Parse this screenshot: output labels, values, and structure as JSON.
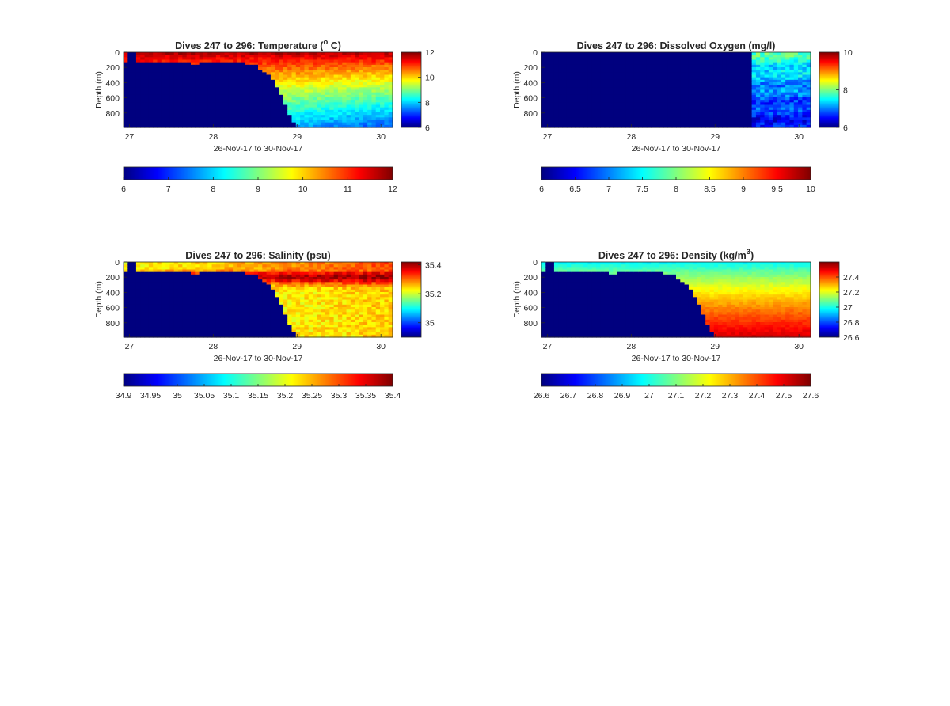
{
  "figure": {
    "background": "#ffffff"
  },
  "colormap": {
    "name": "jet",
    "stops": [
      "#00007f",
      "#0000ff",
      "#007fff",
      "#00ffff",
      "#7fff7f",
      "#ffff00",
      "#ff7f00",
      "#ff0000",
      "#7f0000"
    ]
  },
  "chart_data": [
    {
      "type": "heatmap",
      "title_main": "Dives 247 to 296: Temperature (",
      "title_sup": "o",
      "title_tail": " C)",
      "xlabel": "26-Nov-17 to 30-Nov-17",
      "ylabel": "Depth (m)",
      "x_ticks": [
        "27",
        "28",
        "29",
        "30"
      ],
      "x_tick_values": [
        27,
        28,
        29,
        30
      ],
      "xlim": [
        26.93,
        30.14
      ],
      "y_ticks": [
        "0",
        "200",
        "400",
        "600",
        "800"
      ],
      "y_tick_values": [
        0,
        200,
        400,
        600,
        800
      ],
      "ylim": [
        0,
        990
      ],
      "colorbar": {
        "ticks": [
          "6",
          "8",
          "10",
          "12"
        ],
        "tick_values": [
          6,
          8,
          10,
          12
        ],
        "range": [
          6,
          12
        ]
      },
      "hcolorbar": {
        "ticks": [
          "6",
          "7",
          "8",
          "9",
          "10",
          "11",
          "12"
        ],
        "tick_values": [
          6,
          7,
          8,
          9,
          10,
          11,
          12
        ],
        "range": [
          6,
          12
        ]
      },
      "field": {
        "no_data_value": 6,
        "seafloor": {
          "x": [
            26.93,
            27.5,
            27.8,
            28.2,
            28.5,
            28.7,
            28.8,
            28.9,
            29.0,
            29.4,
            30.14
          ],
          "depth": [
            140,
            140,
            150,
            130,
            160,
            350,
            550,
            800,
            990,
            990,
            990
          ]
        },
        "surface_value": 11.8,
        "bottom_value_west": 8.6,
        "bottom_value_east": 7.2
      }
    },
    {
      "type": "heatmap",
      "title_main": "Dives 247 to 296: Dissolved Oxygen (mg/l)",
      "title_sup": "",
      "title_tail": "",
      "xlabel": "26-Nov-17 to 30-Nov-17",
      "ylabel": "Depth (m)",
      "x_ticks": [
        "27",
        "28",
        "29",
        "30"
      ],
      "x_tick_values": [
        27,
        28,
        29,
        30
      ],
      "xlim": [
        26.93,
        30.14
      ],
      "y_ticks": [
        "0",
        "200",
        "400",
        "600",
        "800"
      ],
      "y_tick_values": [
        0,
        200,
        400,
        600,
        800
      ],
      "ylim": [
        0,
        990
      ],
      "colorbar": {
        "ticks": [
          "6",
          "8",
          "10"
        ],
        "tick_values": [
          6,
          8,
          10
        ],
        "range": [
          6,
          10
        ]
      },
      "hcolorbar": {
        "ticks": [
          "6",
          "6.5",
          "7",
          "7.5",
          "8",
          "8.5",
          "9",
          "9.5",
          "10"
        ],
        "tick_values": [
          6,
          6.5,
          7,
          7.5,
          8,
          8.5,
          9,
          9.5,
          10
        ],
        "range": [
          6,
          10
        ]
      },
      "field": {
        "no_data_value": 6,
        "valid_from_x": 29.42,
        "surface_value": 7.9,
        "bottom_value": 6.5
      }
    },
    {
      "type": "heatmap",
      "title_main": "Dives 247 to 296: Salinity (psu)",
      "title_sup": "",
      "title_tail": "",
      "xlabel": "26-Nov-17 to 30-Nov-17",
      "ylabel": "Depth (m)",
      "x_ticks": [
        "27",
        "28",
        "29",
        "30"
      ],
      "x_tick_values": [
        27,
        28,
        29,
        30
      ],
      "xlim": [
        26.93,
        30.14
      ],
      "y_ticks": [
        "0",
        "200",
        "400",
        "600",
        "800"
      ],
      "y_tick_values": [
        0,
        200,
        400,
        600,
        800
      ],
      "ylim": [
        0,
        990
      ],
      "colorbar": {
        "ticks": [
          "35",
          "35.2",
          "35.4"
        ],
        "tick_values": [
          35.0,
          35.2,
          35.4
        ],
        "range": [
          34.9,
          35.42
        ]
      },
      "hcolorbar": {
        "ticks": [
          "34.9",
          "34.95",
          "35",
          "35.05",
          "35.1",
          "35.15",
          "35.2",
          "35.25",
          "35.3",
          "35.35",
          "35.4"
        ],
        "tick_values": [
          34.9,
          34.95,
          35.0,
          35.05,
          35.1,
          35.15,
          35.2,
          35.25,
          35.3,
          35.35,
          35.4
        ],
        "range": [
          34.9,
          35.4
        ]
      },
      "field": {
        "no_data_value": 34.9,
        "seafloor": {
          "x": [
            26.93,
            27.5,
            27.8,
            28.2,
            28.5,
            28.7,
            28.8,
            28.9,
            29.0,
            29.4,
            30.14
          ],
          "depth": [
            140,
            140,
            150,
            130,
            160,
            350,
            550,
            800,
            990,
            990,
            990
          ]
        },
        "surface_value": 35.22,
        "subsurface_value": 35.36,
        "bottom_value": 35.2
      }
    },
    {
      "type": "heatmap",
      "title_main": "Dives 247 to 296: Density (kg/m",
      "title_sup": "3",
      "title_tail": ")",
      "xlabel": "26-Nov-17 to 30-Nov-17",
      "ylabel": "Depth (m)",
      "x_ticks": [
        "27",
        "28",
        "29",
        "30"
      ],
      "x_tick_values": [
        27,
        28,
        29,
        30
      ],
      "xlim": [
        26.93,
        30.14
      ],
      "y_ticks": [
        "0",
        "200",
        "400",
        "600",
        "800"
      ],
      "y_tick_values": [
        0,
        200,
        400,
        600,
        800
      ],
      "ylim": [
        0,
        990
      ],
      "colorbar": {
        "ticks": [
          "26.6",
          "26.8",
          "27",
          "27.2",
          "27.4"
        ],
        "tick_values": [
          26.6,
          26.8,
          27.0,
          27.2,
          27.4
        ],
        "range": [
          26.6,
          27.6
        ]
      },
      "hcolorbar": {
        "ticks": [
          "26.6",
          "26.7",
          "26.8",
          "26.9",
          "27",
          "27.1",
          "27.2",
          "27.3",
          "27.4",
          "27.5",
          "27.6"
        ],
        "tick_values": [
          26.6,
          26.7,
          26.8,
          26.9,
          27.0,
          27.1,
          27.2,
          27.3,
          27.4,
          27.5,
          27.6
        ],
        "range": [
          26.6,
          27.6
        ]
      },
      "field": {
        "no_data_value": 26.6,
        "seafloor": {
          "x": [
            26.93,
            27.5,
            27.8,
            28.2,
            28.5,
            28.7,
            28.8,
            28.9,
            29.0,
            29.4,
            30.14
          ],
          "depth": [
            140,
            140,
            150,
            130,
            160,
            350,
            550,
            800,
            990,
            990,
            990
          ]
        },
        "surface_value": 26.95,
        "bottom_value": 27.52
      }
    }
  ]
}
